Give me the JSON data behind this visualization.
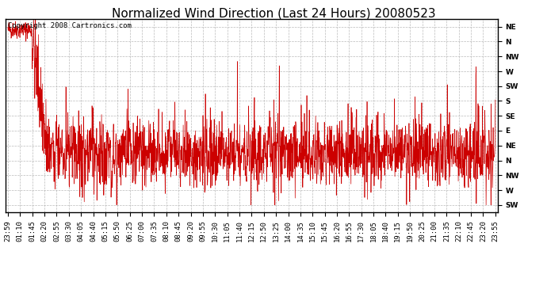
{
  "title": "Normalized Wind Direction (Last 24 Hours) 20080523",
  "copyright_text": "Copyright 2008 Cartronics.com",
  "line_color": "#cc0000",
  "background_color": "#ffffff",
  "grid_color": "#aaaaaa",
  "ytick_labels": [
    "NE",
    "N",
    "NW",
    "W",
    "SW",
    "S",
    "SE",
    "E",
    "NE",
    "N",
    "NW",
    "W",
    "SW"
  ],
  "ytick_values": [
    13,
    12,
    11,
    10,
    9,
    8,
    7,
    6,
    5,
    4,
    3,
    2,
    1
  ],
  "ymin": 0.5,
  "ymax": 13.5,
  "xtick_labels": [
    "23:59",
    "01:10",
    "01:45",
    "02:20",
    "02:55",
    "03:30",
    "04:05",
    "04:40",
    "05:15",
    "05:50",
    "06:25",
    "07:00",
    "07:35",
    "08:10",
    "08:45",
    "09:20",
    "09:55",
    "10:30",
    "11:05",
    "11:40",
    "12:15",
    "12:50",
    "13:25",
    "14:00",
    "14:35",
    "15:10",
    "15:45",
    "16:20",
    "16:55",
    "17:30",
    "18:05",
    "18:40",
    "19:15",
    "19:50",
    "20:25",
    "21:00",
    "21:35",
    "22:10",
    "22:45",
    "23:20",
    "23:55"
  ],
  "title_fontsize": 11,
  "tick_fontsize": 6.5,
  "copyright_fontsize": 6.5
}
